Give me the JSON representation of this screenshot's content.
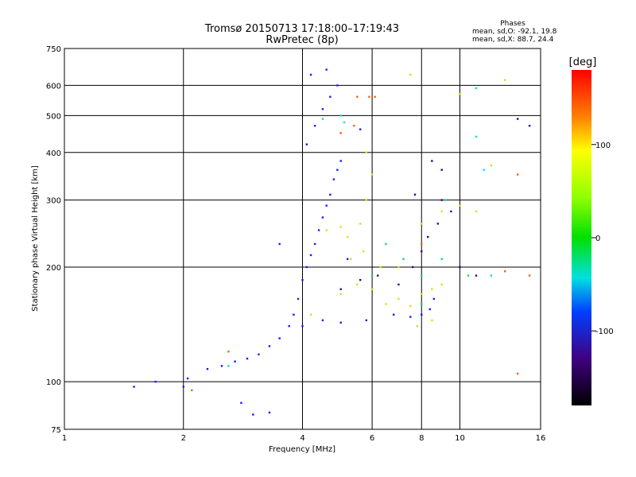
{
  "chart_data": {
    "type": "scatter",
    "title": "Tromsø 20150713 17:18:00–17:19:43",
    "subtitle": "RwPretec (8p)",
    "annotation": {
      "heading": "Phases",
      "line1": "mean, sd,O: -92.1, 19.8",
      "line2": "mean, sd,X: 88.7, 24.4"
    },
    "xlabel": "Frequency [MHz]",
    "ylabel": "Stationary phase Virtual Height [km]",
    "xscale": "log",
    "yscale": "log",
    "xlim": [
      1,
      16
    ],
    "ylim": [
      75,
      750
    ],
    "xticks": [
      1,
      2,
      4,
      6,
      8,
      10,
      16
    ],
    "yticks": [
      75,
      100,
      200,
      300,
      400,
      500,
      600,
      750
    ],
    "grid": true,
    "colorbar": {
      "label": "[deg]",
      "range": [
        -180,
        180
      ],
      "ticks": [
        100,
        0,
        -100
      ],
      "colormap": "rainbow"
    },
    "series": [
      {
        "phase_deg": -100,
        "color": "#1a1aff",
        "points": [
          [
            1.5,
            97
          ],
          [
            1.7,
            100
          ],
          [
            2.0,
            97
          ],
          [
            2.05,
            102
          ],
          [
            2.3,
            108
          ],
          [
            2.5,
            110
          ],
          [
            2.7,
            113
          ],
          [
            2.9,
            115
          ],
          [
            3.1,
            118
          ],
          [
            3.3,
            124
          ],
          [
            3.5,
            130
          ],
          [
            3.7,
            140
          ],
          [
            3.8,
            150
          ],
          [
            3.9,
            165
          ],
          [
            4.0,
            185
          ],
          [
            4.1,
            200
          ],
          [
            4.2,
            215
          ],
          [
            4.3,
            230
          ],
          [
            4.4,
            250
          ],
          [
            4.5,
            270
          ],
          [
            4.6,
            290
          ],
          [
            4.7,
            310
          ],
          [
            4.8,
            340
          ],
          [
            4.9,
            360
          ],
          [
            5.0,
            380
          ],
          [
            4.1,
            420
          ],
          [
            4.3,
            470
          ],
          [
            4.5,
            520
          ],
          [
            4.7,
            560
          ],
          [
            4.9,
            600
          ],
          [
            4.2,
            640
          ],
          [
            4.6,
            660
          ],
          [
            5.6,
            460
          ],
          [
            5.2,
            210
          ],
          [
            5.8,
            145
          ],
          [
            6.8,
            150
          ],
          [
            7.5,
            148
          ],
          [
            8.0,
            150
          ],
          [
            8.4,
            155
          ],
          [
            8.6,
            165
          ],
          [
            3.0,
            82
          ],
          [
            3.3,
            83
          ],
          [
            2.8,
            88
          ],
          [
            3.5,
            230
          ],
          [
            4.0,
            140
          ],
          [
            4.5,
            145
          ],
          [
            5.0,
            143
          ]
        ]
      },
      {
        "phase_deg": 130,
        "color": "#dcdc10",
        "points": [
          [
            5.0,
            170
          ],
          [
            5.5,
            180
          ],
          [
            6.0,
            175
          ],
          [
            6.5,
            160
          ],
          [
            7.0,
            165
          ],
          [
            7.5,
            158
          ],
          [
            8.0,
            170
          ],
          [
            8.5,
            175
          ],
          [
            9.0,
            180
          ],
          [
            5.3,
            210
          ],
          [
            5.7,
            220
          ],
          [
            6.3,
            200
          ],
          [
            5.2,
            240
          ],
          [
            5.6,
            260
          ],
          [
            5.8,
            300
          ],
          [
            6.0,
            350
          ],
          [
            5.8,
            400
          ],
          [
            7.0,
            200
          ],
          [
            8.0,
            260
          ],
          [
            9.0,
            280
          ],
          [
            10.0,
            290
          ],
          [
            11.0,
            280
          ],
          [
            7.8,
            140
          ],
          [
            8.5,
            145
          ],
          [
            7.5,
            640
          ],
          [
            10.0,
            570
          ],
          [
            12.0,
            370
          ],
          [
            13.0,
            620
          ],
          [
            4.2,
            150
          ],
          [
            4.6,
            250
          ],
          [
            5.0,
            255
          ]
        ]
      },
      {
        "phase_deg": -160,
        "color": "#40008a",
        "points": [
          [
            5.0,
            175
          ],
          [
            5.6,
            185
          ],
          [
            6.2,
            190
          ],
          [
            7.0,
            180
          ],
          [
            7.6,
            200
          ],
          [
            8.0,
            220
          ],
          [
            8.3,
            240
          ],
          [
            8.8,
            260
          ],
          [
            9.0,
            300
          ],
          [
            9.5,
            280
          ],
          [
            8.5,
            380
          ],
          [
            9.0,
            360
          ],
          [
            10.0,
            200
          ],
          [
            11.0,
            190
          ],
          [
            14.0,
            490
          ],
          [
            15.0,
            470
          ],
          [
            7.7,
            310
          ]
        ]
      },
      {
        "phase_deg": 30,
        "color": "#10e060",
        "points": [
          [
            6.0,
            190
          ],
          [
            6.5,
            230
          ],
          [
            7.2,
            210
          ],
          [
            8.0,
            190
          ],
          [
            9.0,
            210
          ],
          [
            10.5,
            190
          ],
          [
            8.0,
            160
          ],
          [
            9.2,
            300
          ]
        ]
      },
      {
        "phase_deg": -40,
        "color": "#00e0e0",
        "points": [
          [
            2.6,
            110
          ],
          [
            4.5,
            490
          ],
          [
            5.0,
            500
          ],
          [
            5.1,
            480
          ],
          [
            11.0,
            590
          ],
          [
            11.0,
            440
          ],
          [
            11.5,
            360
          ],
          [
            12.0,
            190
          ]
        ]
      },
      {
        "phase_deg": 160,
        "color": "#ff6010",
        "points": [
          [
            5.0,
            450
          ],
          [
            5.4,
            470
          ],
          [
            5.5,
            560
          ],
          [
            5.9,
            560
          ],
          [
            6.1,
            560
          ],
          [
            8.0,
            230
          ],
          [
            14.0,
            350
          ],
          [
            15.0,
            190
          ],
          [
            13.0,
            195
          ],
          [
            14.0,
            105
          ],
          [
            2.1,
            95
          ],
          [
            2.6,
            120
          ]
        ]
      }
    ]
  }
}
